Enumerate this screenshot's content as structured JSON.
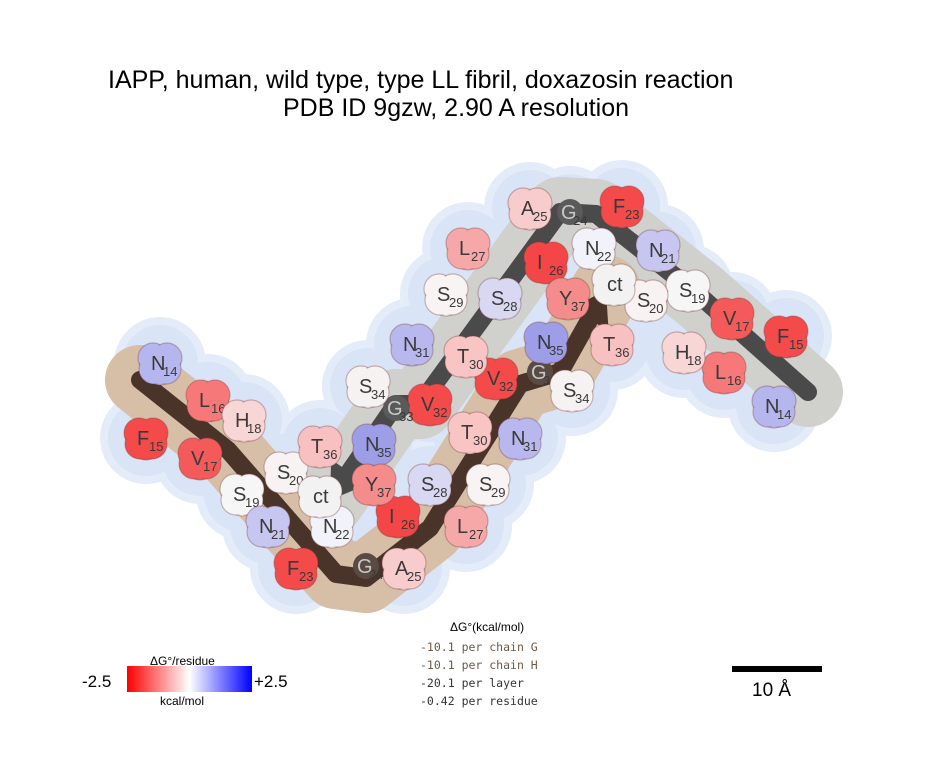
{
  "title": {
    "line1": "IAPP, human, wild type, type LL fibril, doxazosin reaction",
    "line2": "PDB ID 9gzw, 2.90 A resolution"
  },
  "colors": {
    "chain_g_arrow": "#4a4a4a",
    "chain_h_arrow": "#4a3328",
    "halo": "#e4ecfa",
    "chain_g_body": "#d0d0cc",
    "chain_h_body": "#d6bfa6"
  },
  "residues": [
    {
      "letter": "N",
      "num": "14",
      "chain": "H",
      "color": "#b6b6ee"
    },
    {
      "letter": "F",
      "num": "15",
      "chain": "H",
      "color": "#f44a4a"
    },
    {
      "letter": "L",
      "num": "16",
      "chain": "H",
      "color": "#f67878"
    },
    {
      "letter": "V",
      "num": "17",
      "chain": "H",
      "color": "#f45a5a"
    },
    {
      "letter": "H",
      "num": "18",
      "chain": "H",
      "color": "#f8d6d6"
    },
    {
      "letter": "S",
      "num": "19",
      "chain": "H",
      "color": "#f6f6f6"
    },
    {
      "letter": "S",
      "num": "20",
      "chain": "H",
      "color": "#f8f2f2"
    },
    {
      "letter": "N",
      "num": "21",
      "chain": "H",
      "color": "#c6c6f0"
    },
    {
      "letter": "N",
      "num": "22",
      "chain": "H",
      "color": "#f2f2fa"
    },
    {
      "letter": "F",
      "num": "23",
      "chain": "H",
      "color": "#f44a4a"
    },
    {
      "letter": "G",
      "num": "24",
      "chain": "H",
      "color": "#5a4a44"
    },
    {
      "letter": "A",
      "num": "25",
      "chain": "H",
      "color": "#f8cccc"
    },
    {
      "letter": "I",
      "num": "26",
      "chain": "H",
      "color": "#f44646"
    },
    {
      "letter": "L",
      "num": "27",
      "chain": "H",
      "color": "#f6a8a8"
    },
    {
      "letter": "S",
      "num": "28",
      "chain": "H",
      "color": "#d8d8f2"
    },
    {
      "letter": "S",
      "num": "29",
      "chain": "H",
      "color": "#f8f4f4"
    },
    {
      "letter": "T",
      "num": "30",
      "chain": "H",
      "color": "#f8c4c4"
    },
    {
      "letter": "N",
      "num": "31",
      "chain": "H",
      "color": "#b8b8ee"
    },
    {
      "letter": "V",
      "num": "32",
      "chain": "H",
      "color": "#f44a4a"
    },
    {
      "letter": "G",
      "num": "33",
      "chain": "H",
      "color": "#5a4a44"
    },
    {
      "letter": "S",
      "num": "34",
      "chain": "H",
      "color": "#f6f2f2"
    },
    {
      "letter": "N",
      "num": "35",
      "chain": "H",
      "color": "#9e9ee8"
    },
    {
      "letter": "T",
      "num": "36",
      "chain": "H",
      "color": "#f8c0c0"
    },
    {
      "letter": "Y",
      "num": "37",
      "chain": "H",
      "color": "#f48c8c"
    },
    {
      "letter": "ct",
      "num": "",
      "chain": "H",
      "color": "#f2f2f2"
    },
    {
      "letter": "N",
      "num": "14",
      "chain": "G",
      "color": "#b6b6ee"
    },
    {
      "letter": "F",
      "num": "15",
      "chain": "G",
      "color": "#f44a4a"
    },
    {
      "letter": "L",
      "num": "16",
      "chain": "G",
      "color": "#f67878"
    },
    {
      "letter": "V",
      "num": "17",
      "chain": "G",
      "color": "#f45a5a"
    },
    {
      "letter": "H",
      "num": "18",
      "chain": "G",
      "color": "#f8d6d6"
    },
    {
      "letter": "S",
      "num": "19",
      "chain": "G",
      "color": "#f6f6f6"
    },
    {
      "letter": "S",
      "num": "20",
      "chain": "G",
      "color": "#f8f2f2"
    },
    {
      "letter": "N",
      "num": "21",
      "chain": "G",
      "color": "#c6c6f0"
    },
    {
      "letter": "N",
      "num": "22",
      "chain": "G",
      "color": "#f2f2fa"
    },
    {
      "letter": "F",
      "num": "23",
      "chain": "G",
      "color": "#f44a4a"
    },
    {
      "letter": "G",
      "num": "24",
      "chain": "G",
      "color": "#5a5a5a"
    },
    {
      "letter": "A",
      "num": "25",
      "chain": "G",
      "color": "#f8cccc"
    },
    {
      "letter": "I",
      "num": "26",
      "chain": "G",
      "color": "#f44646"
    },
    {
      "letter": "L",
      "num": "27",
      "chain": "G",
      "color": "#f6a8a8"
    },
    {
      "letter": "S",
      "num": "28",
      "chain": "G",
      "color": "#d8d8f2"
    },
    {
      "letter": "S",
      "num": "29",
      "chain": "G",
      "color": "#f8f4f4"
    },
    {
      "letter": "T",
      "num": "30",
      "chain": "G",
      "color": "#f8c4c4"
    },
    {
      "letter": "N",
      "num": "31",
      "chain": "G",
      "color": "#b8b8ee"
    },
    {
      "letter": "V",
      "num": "32",
      "chain": "G",
      "color": "#f44a4a"
    },
    {
      "letter": "G",
      "num": "33",
      "chain": "G",
      "color": "#5a5a5a"
    },
    {
      "letter": "S",
      "num": "34",
      "chain": "G",
      "color": "#f6f2f2"
    },
    {
      "letter": "N",
      "num": "35",
      "chain": "G",
      "color": "#9e9ee8"
    },
    {
      "letter": "T",
      "num": "36",
      "chain": "G",
      "color": "#f8c0c0"
    },
    {
      "letter": "Y",
      "num": "37",
      "chain": "G",
      "color": "#f48c8c"
    },
    {
      "letter": "ct",
      "num": "",
      "chain": "G",
      "color": "#f2f2f2"
    }
  ],
  "legend": {
    "title": "ΔG°/residue",
    "min": "-2.5",
    "max": "+2.5",
    "unit": "kcal/mol"
  },
  "energy": {
    "header": "ΔG°(kcal/mol)",
    "rows": [
      {
        "value": "-10.1",
        "label": "per chain G"
      },
      {
        "value": "-10.1",
        "label": "per chain H"
      },
      {
        "value": "-20.1",
        "label": "per layer"
      },
      {
        "value": "-0.42",
        "label": "per residue"
      }
    ]
  },
  "scale_bar": {
    "label": "10 Å"
  }
}
